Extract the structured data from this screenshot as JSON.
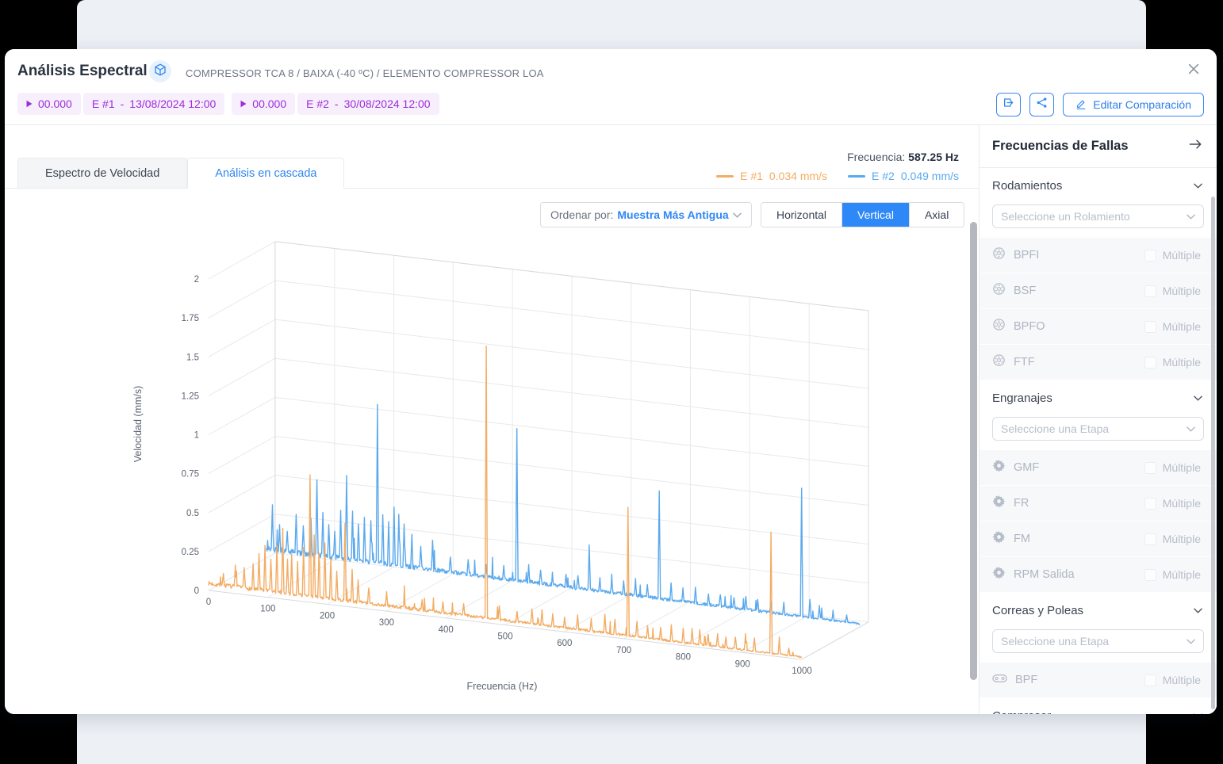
{
  "header": {
    "title": "Análisis Espectral",
    "breadcrumb": "COMPRESSOR TCA 8 / BAIXA (-40 ºC) / ELEMENTO COMPRESSOR LOA"
  },
  "samples": [
    {
      "cursor": "00.000",
      "tag": "E #1",
      "date": "13/08/2024 12:00"
    },
    {
      "cursor": "00.000",
      "tag": "E #2",
      "date": "30/08/2024 12:00"
    }
  ],
  "toolbar": {
    "edit_label": "Editar Comparación"
  },
  "tabs": [
    {
      "label": "Espectro de Velocidad",
      "active": false
    },
    {
      "label": "Análisis en cascada",
      "active": true
    }
  ],
  "readout": {
    "frequency_label": "Frecuencia:",
    "frequency_value": "587.25 Hz",
    "legend": [
      {
        "name": "E #1",
        "value": "0.034 mm/s",
        "color": "#f3ac63"
      },
      {
        "name": "E #2",
        "value": "0.049 mm/s",
        "color": "#5aa9ee"
      }
    ]
  },
  "controls": {
    "sort_label": "Ordenar por:",
    "sort_value": "Muestra Más Antigua",
    "axis_buttons": [
      {
        "label": "Horizontal",
        "active": false
      },
      {
        "label": "Vertical",
        "active": true
      },
      {
        "label": "Axial",
        "active": false
      }
    ]
  },
  "chart_data": {
    "type": "line",
    "subtype": "3d-waterfall-spectrum",
    "xlabel": "Frecuencia (Hz)",
    "ylabel": "Velocidad (mm/s)",
    "xlim": [
      0,
      1000
    ],
    "ylim": [
      0,
      2
    ],
    "x_ticks": [
      0,
      100,
      200,
      300,
      400,
      500,
      600,
      700,
      800,
      900,
      1000
    ],
    "y_ticks": [
      0,
      0.25,
      0.5,
      0.75,
      1,
      1.25,
      1.5,
      1.75,
      2
    ],
    "grid": true,
    "legend_position": "top-right",
    "cursor": {
      "frequency_hz": 587.25,
      "E #1_mm_s": 0.034,
      "E #2_mm_s": 0.049
    },
    "series": [
      {
        "name": "E #1",
        "date": "13/08/2024 12:00",
        "color": "#f3ac63",
        "depth": 0,
        "baseline_start": 0.045,
        "baseline_end": 0.015,
        "peaks": [
          [
            25,
            0.08
          ],
          [
            45,
            0.1
          ],
          [
            60,
            0.13
          ],
          [
            75,
            0.16
          ],
          [
            85,
            0.22
          ],
          [
            95,
            0.28
          ],
          [
            105,
            0.2
          ],
          [
            115,
            0.3
          ],
          [
            125,
            0.42
          ],
          [
            133,
            0.22
          ],
          [
            140,
            0.25
          ],
          [
            150,
            0.2
          ],
          [
            160,
            0.3
          ],
          [
            171,
            0.78
          ],
          [
            178,
            0.4
          ],
          [
            186,
            0.28
          ],
          [
            196,
            0.35
          ],
          [
            206,
            0.25
          ],
          [
            216,
            0.18
          ],
          [
            230,
            0.5
          ],
          [
            242,
            0.2
          ],
          [
            252,
            0.15
          ],
          [
            270,
            0.1
          ],
          [
            300,
            0.08
          ],
          [
            330,
            0.06
          ],
          [
            360,
            0.06
          ],
          [
            395,
            0.07
          ],
          [
            430,
            0.08
          ],
          [
            468,
            1.75
          ],
          [
            490,
            0.08
          ],
          [
            520,
            0.07
          ],
          [
            545,
            0.09
          ],
          [
            562,
            0.1
          ],
          [
            580,
            0.08
          ],
          [
            600,
            0.07
          ],
          [
            622,
            0.09
          ],
          [
            645,
            0.08
          ],
          [
            668,
            0.12
          ],
          [
            685,
            0.1
          ],
          [
            707,
            0.82
          ],
          [
            722,
            0.1
          ],
          [
            740,
            0.08
          ],
          [
            762,
            0.08
          ],
          [
            780,
            0.1
          ],
          [
            800,
            0.09
          ],
          [
            815,
            0.1
          ],
          [
            828,
            0.09
          ],
          [
            842,
            0.07
          ],
          [
            858,
            0.08
          ],
          [
            872,
            0.07
          ],
          [
            888,
            0.08
          ],
          [
            905,
            0.1
          ],
          [
            920,
            0.09
          ],
          [
            948,
            0.78
          ],
          [
            962,
            0.08
          ],
          [
            978,
            0.05
          ]
        ]
      },
      {
        "name": "E #2",
        "date": "30/08/2024 12:00",
        "color": "#5aa9ee",
        "depth": 1,
        "baseline_start": 0.06,
        "baseline_end": 0.02,
        "peaks": [
          [
            10,
            0.28
          ],
          [
            22,
            0.15
          ],
          [
            35,
            0.12
          ],
          [
            50,
            0.25
          ],
          [
            62,
            0.18
          ],
          [
            75,
            0.22
          ],
          [
            85,
            0.48
          ],
          [
            95,
            0.28
          ],
          [
            105,
            0.22
          ],
          [
            115,
            0.18
          ],
          [
            125,
            0.3
          ],
          [
            135,
            0.52
          ],
          [
            145,
            0.32
          ],
          [
            155,
            0.22
          ],
          [
            165,
            0.28
          ],
          [
            176,
            0.26
          ],
          [
            187,
            1.02
          ],
          [
            196,
            0.32
          ],
          [
            206,
            0.28
          ],
          [
            215,
            0.38
          ],
          [
            223,
            0.32
          ],
          [
            232,
            0.28
          ],
          [
            245,
            0.2
          ],
          [
            260,
            0.14
          ],
          [
            280,
            0.2
          ],
          [
            310,
            0.1
          ],
          [
            340,
            0.09
          ],
          [
            370,
            0.07
          ],
          [
            400,
            0.09
          ],
          [
            422,
            0.98
          ],
          [
            442,
            0.1
          ],
          [
            462,
            0.08
          ],
          [
            482,
            0.07
          ],
          [
            505,
            0.08
          ],
          [
            525,
            0.07
          ],
          [
            544,
            0.28
          ],
          [
            562,
            0.08
          ],
          [
            582,
            0.07
          ],
          [
            602,
            0.08
          ],
          [
            622,
            0.1
          ],
          [
            642,
            0.08
          ],
          [
            662,
            0.7
          ],
          [
            682,
            0.1
          ],
          [
            702,
            0.08
          ],
          [
            723,
            0.1
          ],
          [
            745,
            0.07
          ],
          [
            765,
            0.08
          ],
          [
            788,
            0.07
          ],
          [
            808,
            0.08
          ],
          [
            828,
            0.07
          ],
          [
            850,
            0.08
          ],
          [
            872,
            0.07
          ],
          [
            902,
            0.82
          ],
          [
            916,
            0.12
          ],
          [
            932,
            0.08
          ],
          [
            955,
            0.06
          ],
          [
            978,
            0.05
          ]
        ]
      }
    ]
  },
  "sidebar": {
    "title": "Frecuencias de Fallas",
    "multiple_label": "Múltiple",
    "sections": [
      {
        "title": "Rodamientos",
        "select_placeholder": "Seleccione un Rolamiento",
        "icon": "bearing",
        "items": [
          "BPFI",
          "BSF",
          "BPFO",
          "FTF"
        ]
      },
      {
        "title": "Engranajes",
        "select_placeholder": "Seleccione una Etapa",
        "icon": "gear",
        "items": [
          "GMF",
          "FR",
          "FM",
          "RPM Salida"
        ]
      },
      {
        "title": "Correas y Poleas",
        "select_placeholder": "Seleccione una Etapa",
        "icon": "belt",
        "items": [
          "BPF"
        ]
      },
      {
        "title": "Compresor",
        "select_placeholder": "",
        "icon": "",
        "items": []
      }
    ]
  }
}
